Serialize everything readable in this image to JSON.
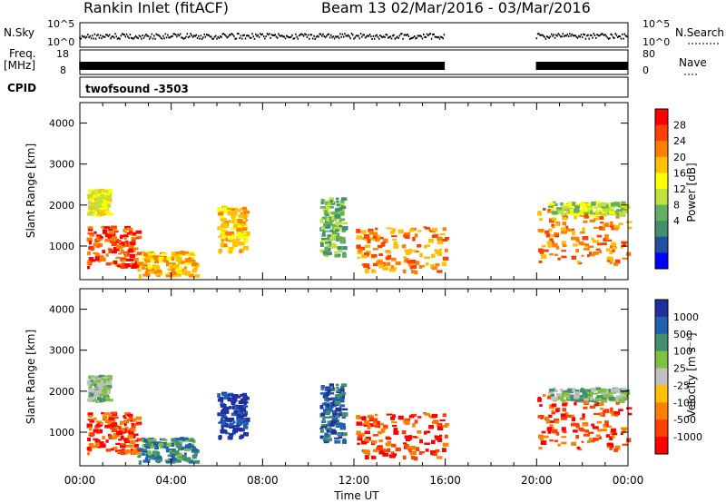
{
  "header": {
    "station": "Rankin Inlet (fitACF)",
    "beam_range": "Beam 13  02/Mar/2016 - 03/Mar/2016"
  },
  "strips": {
    "nsky_label": "N.Sky",
    "nsky_ticks": [
      "10^5",
      "10^0"
    ],
    "nsearch_label": "N.Search",
    "nsearch_ticks": [
      "10^5",
      "10^0"
    ],
    "freq_label_1": "Freq.",
    "freq_label_2": "[MHz]",
    "freq_ticks": [
      "18",
      "8"
    ],
    "nave_label": "Nave",
    "nave_ticks": [
      "80",
      "0"
    ],
    "cpid_label": "CPID",
    "cpid_value": "twofsound -3503"
  },
  "panels": {
    "ylabel": "Slant Range [km]",
    "y_ticks": [
      "4000",
      "3000",
      "2000",
      "1000"
    ],
    "x_ticks": [
      "00:00",
      "04:00",
      "08:00",
      "12:00",
      "16:00",
      "20:00",
      "00:00"
    ],
    "xlabel": "Time UT"
  },
  "colorbars": {
    "power": {
      "label": "Power [dB]",
      "ticks": [
        "28",
        "24",
        "20",
        "16",
        "12",
        "8",
        "4"
      ],
      "colors": [
        "#ff0000",
        "#ff4000",
        "#ff8000",
        "#ffc000",
        "#ffff00",
        "#c0e040",
        "#60b060",
        "#409070",
        "#2050a0",
        "#0000ff"
      ]
    },
    "velocity": {
      "label": "Velocity [m s⁻¹]",
      "ticks": [
        "1000",
        "500",
        "100",
        "25",
        "-25",
        "-100",
        "-500",
        "-1000"
      ],
      "colors": [
        "#2030a0",
        "#2060b0",
        "#409070",
        "#80c040",
        "#c0c0c0",
        "#ffc000",
        "#ff8000",
        "#ff4000",
        "#ff0000"
      ]
    }
  },
  "chart_data": {
    "type": "heatmap",
    "title": "Rankin Inlet (fitACF)  Beam 13  02/Mar/2016 - 03/Mar/2016",
    "xlabel": "Time UT",
    "ylabel": "Slant Range [km]",
    "xlim_hours": [
      0,
      24
    ],
    "ylim_km": [
      180,
      4500
    ],
    "data_gap_hours": [
      16,
      20
    ],
    "regions": [
      {
        "t0": 0.3,
        "t1": 2.5,
        "r0": 500,
        "r1": 1500,
        "power_db": 28,
        "velocity": -500
      },
      {
        "t0": 0.3,
        "t1": 1.2,
        "r0": 1800,
        "r1": 2400,
        "power_db": 18,
        "velocity": 25
      },
      {
        "t0": 2.5,
        "t1": 5.0,
        "r0": 300,
        "r1": 900,
        "power_db": 20,
        "velocity": 100
      },
      {
        "t0": 6.0,
        "t1": 7.2,
        "r0": 900,
        "r1": 2000,
        "power_db": 20,
        "velocity": 1000
      },
      {
        "t0": 10.5,
        "t1": 11.5,
        "r0": 800,
        "r1": 2200,
        "power_db": 12,
        "velocity": 500
      },
      {
        "t0": 12.0,
        "t1": 16.0,
        "r0": 400,
        "r1": 1500,
        "power_db": 24,
        "velocity": -500
      },
      {
        "t0": 20.0,
        "t1": 24.0,
        "r0": 600,
        "r1": 2000,
        "power_db": 24,
        "velocity": -500
      },
      {
        "t0": 20.5,
        "t1": 24.0,
        "r0": 1800,
        "r1": 2100,
        "power_db": 14,
        "velocity": 25
      }
    ]
  }
}
